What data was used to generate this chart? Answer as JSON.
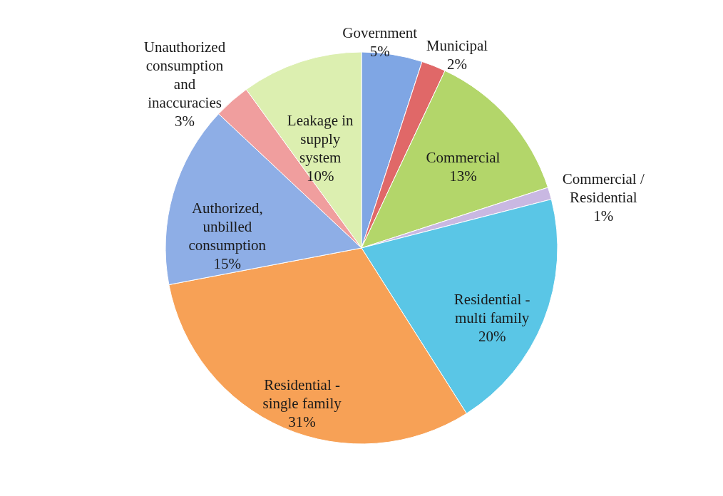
{
  "chart_data": {
    "type": "pie",
    "categories": [
      "Government",
      "Municipal",
      "Commercial",
      "Commercial / Residential",
      "Residential - multi family",
      "Residential - single family",
      "Authorized, unbilled consumption",
      "Unauthorized consumption and inaccuracies",
      "Leakage in supply system"
    ],
    "values": [
      5,
      2,
      13,
      1,
      20,
      31,
      15,
      3,
      10
    ],
    "colors": [
      "#7fa6e4",
      "#e06868",
      "#b3d66a",
      "#c9b8e2",
      "#5ac6e6",
      "#f7a156",
      "#8eaee6",
      "#f09e9e",
      "#dcefb0"
    ],
    "value_labels": [
      "5%",
      "2%",
      "13%",
      "1%",
      "20%",
      "31%",
      "15%",
      "3%",
      "10%"
    ]
  }
}
